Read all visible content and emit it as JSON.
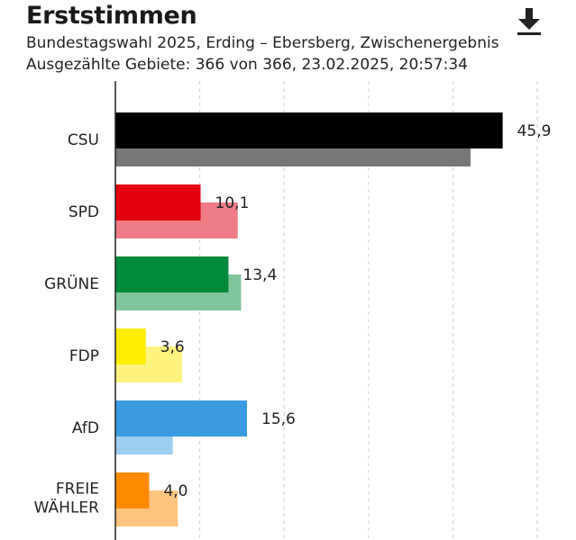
{
  "header": {
    "title": "Erststimmen",
    "subtitle": "Bundestagswahl 2025, Erding – Ebersberg, Zwischenergebnis",
    "meta": "Ausgezählte Gebiete: 366 von 366, 23.02.2025, 20:57:34",
    "download_icon": "download-icon"
  },
  "chart_data": {
    "type": "bar",
    "orientation": "horizontal",
    "categories": [
      "CSU",
      "SPD",
      "GRÜNE",
      "FDP",
      "AfD",
      "FREIE WÄHLER"
    ],
    "series": [
      {
        "values": [
          45.9,
          10.1,
          13.4,
          3.6,
          15.6,
          4.0
        ],
        "colors": [
          "#000000",
          "#e3000f",
          "#008939",
          "#ffed00",
          "#3a9ce0",
          "#ff8a00"
        ]
      },
      {
        "values": [
          42.1,
          14.5,
          14.9,
          7.9,
          6.8,
          7.4
        ],
        "colors": [
          "#777777",
          "#ee7b85",
          "#7fc49b",
          "#fff37f",
          "#9dcdef",
          "#ffc47f"
        ]
      }
    ],
    "value_labels": [
      "45,9",
      "10,1",
      "13,4",
      "3,6",
      "15,6",
      "4,0"
    ],
    "xlim": [
      0,
      50
    ],
    "grid": true,
    "legend": "none"
  }
}
